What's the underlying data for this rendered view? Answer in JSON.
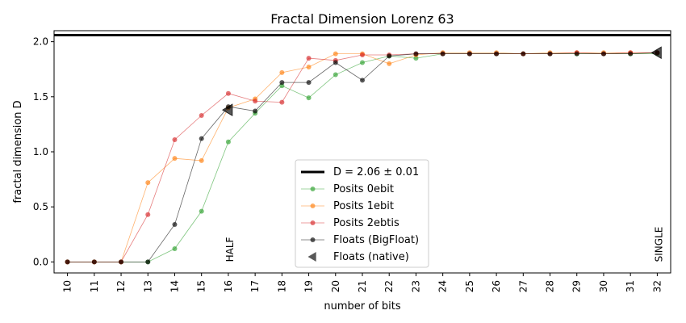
{
  "chart_data": {
    "type": "line",
    "title": "Fractal Dimension Lorenz 63",
    "xlabel": "number of bits",
    "ylabel": "fractal dimension D",
    "xlim": [
      9.5,
      32.5
    ],
    "ylim": [
      -0.1,
      2.1
    ],
    "x_ticks": [
      10,
      11,
      12,
      13,
      14,
      15,
      16,
      17,
      18,
      19,
      20,
      21,
      22,
      23,
      24,
      25,
      26,
      27,
      28,
      29,
      30,
      31,
      32
    ],
    "y_ticks": [
      0.0,
      0.5,
      1.0,
      1.5,
      2.0
    ],
    "y_tick_labels": [
      "0.0",
      "0.5",
      "1.0",
      "1.5",
      "2.0"
    ],
    "grid": false,
    "legend_position": "lower-center",
    "reference_line": {
      "name": "D = 2.06 ± 0.01",
      "y": 2.06,
      "color": "#000000"
    },
    "series": [
      {
        "name": "Posits 0ebit",
        "color": "#2ca02c",
        "x": [
          10,
          11,
          12,
          13,
          14,
          15,
          16,
          17,
          18,
          19,
          20,
          21,
          22,
          23,
          24,
          25,
          26,
          27,
          28,
          29,
          30,
          31,
          32
        ],
        "values": [
          0,
          0,
          0,
          0,
          0.12,
          0.46,
          1.09,
          1.35,
          1.6,
          1.49,
          1.7,
          1.81,
          1.87,
          1.85,
          1.89,
          1.89,
          1.89,
          1.89,
          1.89,
          1.89,
          1.89,
          1.89,
          1.89
        ]
      },
      {
        "name": "Posits 1ebit",
        "color": "#ff7f0e",
        "x": [
          10,
          11,
          12,
          13,
          14,
          15,
          16,
          17,
          18,
          19,
          20,
          21,
          22,
          23,
          24,
          25,
          26,
          27,
          28,
          29,
          30,
          31,
          32
        ],
        "values": [
          0,
          0,
          0,
          0.72,
          0.94,
          0.92,
          1.4,
          1.48,
          1.72,
          1.77,
          1.89,
          1.89,
          1.8,
          1.88,
          1.9,
          1.9,
          1.9,
          1.89,
          1.9,
          1.9,
          1.9,
          1.9,
          1.9
        ]
      },
      {
        "name": "Posits 2ebtis",
        "color": "#d62728",
        "x": [
          10,
          11,
          12,
          13,
          14,
          15,
          16,
          17,
          18,
          19,
          20,
          21,
          22,
          23,
          24,
          25,
          26,
          27,
          28,
          29,
          30,
          31,
          32
        ],
        "values": [
          0,
          0,
          0,
          0.43,
          1.11,
          1.33,
          1.53,
          1.46,
          1.45,
          1.85,
          1.83,
          1.88,
          1.88,
          1.89,
          1.89,
          1.89,
          1.89,
          1.89,
          1.89,
          1.9,
          1.89,
          1.9,
          1.9
        ]
      },
      {
        "name": "Floats (BigFloat)",
        "color": "#000000",
        "x": [
          10,
          11,
          12,
          13,
          14,
          15,
          16,
          17,
          18,
          19,
          20,
          21,
          22,
          23,
          24,
          25,
          26,
          27,
          28,
          29,
          30,
          31,
          32
        ],
        "values": [
          0,
          0,
          0,
          0,
          0.34,
          1.12,
          1.41,
          1.37,
          1.63,
          1.63,
          1.81,
          1.65,
          1.87,
          1.89,
          1.89,
          1.89,
          1.89,
          1.89,
          1.89,
          1.89,
          1.89,
          1.89,
          1.9
        ]
      },
      {
        "name": "Floats (native)",
        "color": "#000000",
        "marker": "triangle-left",
        "x": [
          16,
          32
        ],
        "values": [
          1.38,
          1.9
        ]
      }
    ],
    "annotations": [
      {
        "text": "HALF",
        "x": 16,
        "y": 0.0
      },
      {
        "text": "SINGLE",
        "x": 32,
        "y": 0.0
      }
    ]
  }
}
